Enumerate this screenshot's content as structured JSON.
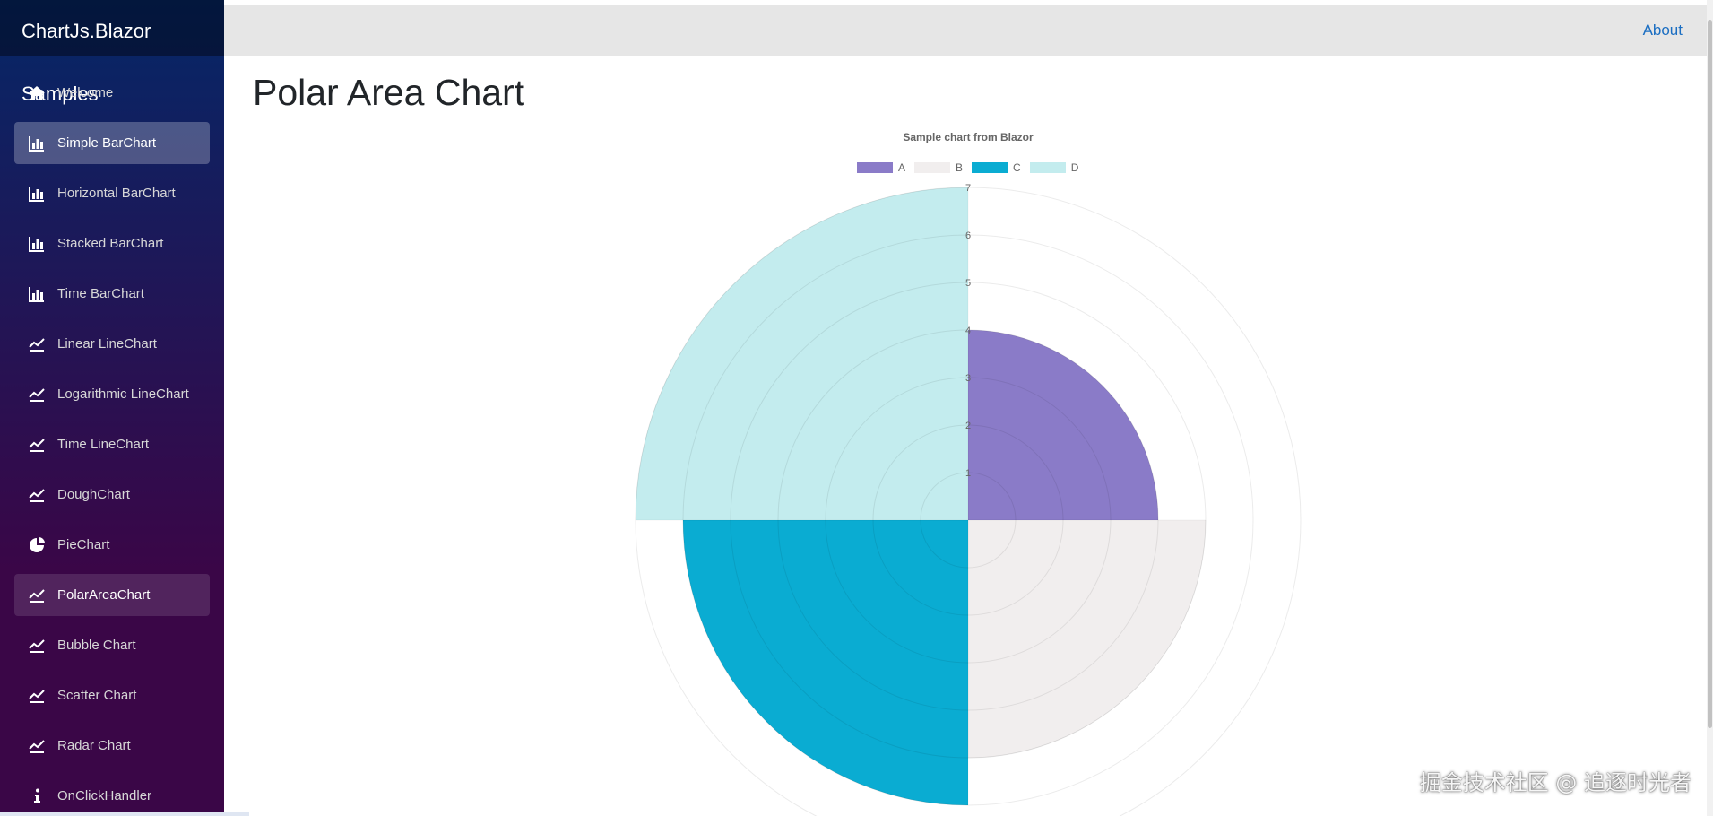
{
  "app": {
    "brand": "ChartJs.Blazor Samples",
    "about_label": "About"
  },
  "sidebar": {
    "items": [
      {
        "label": "Welcome",
        "icon": "home-icon"
      },
      {
        "label": "Simple BarChart",
        "icon": "bar-chart-icon",
        "state": "active"
      },
      {
        "label": "Horizontal BarChart",
        "icon": "bar-chart-icon"
      },
      {
        "label": "Stacked BarChart",
        "icon": "bar-chart-icon"
      },
      {
        "label": "Time BarChart",
        "icon": "bar-chart-icon"
      },
      {
        "label": "Linear LineChart",
        "icon": "line-chart-icon"
      },
      {
        "label": "Logarithmic LineChart",
        "icon": "line-chart-icon"
      },
      {
        "label": "Time LineChart",
        "icon": "line-chart-icon"
      },
      {
        "label": "DoughChart",
        "icon": "line-chart-icon"
      },
      {
        "label": "PieChart",
        "icon": "pie-chart-icon"
      },
      {
        "label": "PolarAreaChart",
        "icon": "line-chart-icon",
        "state": "hover"
      },
      {
        "label": "Bubble Chart",
        "icon": "line-chart-icon"
      },
      {
        "label": "Scatter Chart",
        "icon": "line-chart-icon"
      },
      {
        "label": "Radar Chart",
        "icon": "line-chart-icon"
      },
      {
        "label": "OnClickHandler",
        "icon": "info-icon"
      }
    ]
  },
  "main": {
    "title": "Polar Area Chart"
  },
  "chart_data": {
    "type": "polarArea",
    "title": "Sample chart from Blazor",
    "categories": [
      "A",
      "B",
      "C",
      "D"
    ],
    "values": [
      4,
      5,
      6,
      7
    ],
    "colors": [
      "#8a7bc8",
      "#f1eeee",
      "#0aacd2",
      "#c3ecee"
    ],
    "r_ticks": [
      "1",
      "2",
      "3",
      "4",
      "5",
      "6",
      "7"
    ],
    "rlim": [
      0,
      7
    ],
    "legend_position": "top",
    "grid": true
  },
  "watermark": "掘金技术社区 @ 追逐时光者",
  "colors": {
    "sidebar_top": "#052767",
    "sidebar_bottom": "#3a0647",
    "link": "#1b6ec2"
  }
}
